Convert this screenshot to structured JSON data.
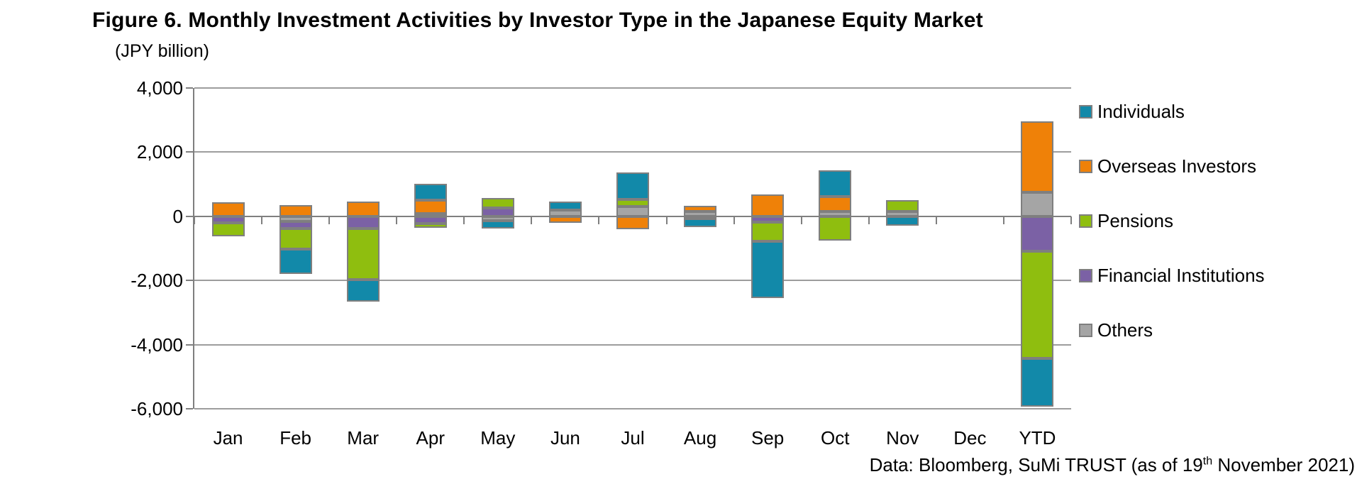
{
  "title": "Figure 6. Monthly Investment Activities by Investor Type in the Japanese Equity Market",
  "unit_label": "(JPY billion)",
  "footer": {
    "prefix": "Data: Bloomberg, SuMi TRUST (as of 19",
    "superscript": "th",
    "suffix": " November 2021)"
  },
  "chart_data": {
    "type": "bar",
    "stacked": true,
    "title": "Figure 6. Monthly Investment Activities by Investor Type in the Japanese Equity Market",
    "ylabel": "(JPY billion)",
    "ylim": [
      -6000,
      4000
    ],
    "ytick_interval": 2000,
    "ytick_labels": [
      "4,000",
      "2,000",
      "0",
      "-2,000",
      "-4,000",
      "-6,000"
    ],
    "grid": true,
    "legend_position": "right",
    "categories": [
      "Jan",
      "Feb",
      "Mar",
      "Apr",
      "May",
      "Jun",
      "Jul",
      "Aug",
      "Sep",
      "Oct",
      "Nov",
      "Dec",
      "YTD"
    ],
    "series": [
      {
        "name": "Individuals",
        "color": "#1289a9",
        "values": [
          0,
          -770,
          -680,
          520,
          -230,
          250,
          840,
          -280,
          -1770,
          820,
          -300,
          0,
          -1500
        ]
      },
      {
        "name": "Overseas Investors",
        "color": "#ef8108",
        "values": [
          430,
          350,
          470,
          410,
          0,
          -210,
          -400,
          190,
          690,
          450,
          0,
          0,
          2200
        ]
      },
      {
        "name": "Pensions",
        "color": "#8fbe0f",
        "values": [
          -410,
          -660,
          -1600,
          -130,
          310,
          0,
          220,
          0,
          -600,
          -760,
          340,
          0,
          -3360
        ]
      },
      {
        "name": "Financial Institutions",
        "color": "#7b61a5",
        "values": [
          -210,
          -200,
          -380,
          -220,
          260,
          0,
          0,
          -60,
          -180,
          0,
          0,
          0,
          -1080
        ]
      },
      {
        "name": "Others",
        "color": "#a5a5a5",
        "values": [
          0,
          -170,
          0,
          90,
          -140,
          200,
          310,
          140,
          0,
          160,
          160,
          0,
          750
        ]
      }
    ],
    "stack_order_from_baseline": [
      "Others",
      "Financial Institutions",
      "Pensions",
      "Overseas Investors",
      "Individuals"
    ]
  }
}
